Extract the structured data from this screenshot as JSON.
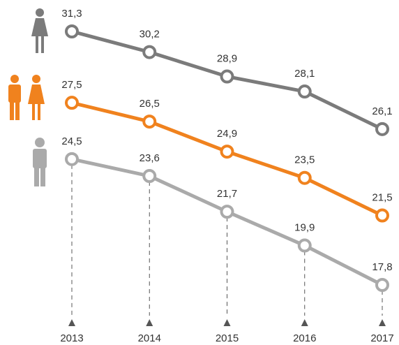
{
  "chart_data": {
    "type": "line",
    "categories": [
      "2013",
      "2014",
      "2015",
      "2016",
      "2017"
    ],
    "series": [
      {
        "color": "#7b7b7b",
        "values": [
          31.3,
          30.2,
          28.9,
          28.1,
          26.1
        ],
        "value_labels": [
          "31,3",
          "30,2",
          "28,9",
          "28,1",
          "26,1"
        ]
      },
      {
        "color": "#f0821e",
        "values": [
          27.5,
          26.5,
          24.9,
          23.5,
          21.5
        ],
        "value_labels": [
          "27,5",
          "26,5",
          "24,9",
          "23,5",
          "21,5"
        ]
      },
      {
        "color": "#aaaaaa",
        "values": [
          24.5,
          23.6,
          21.7,
          19.9,
          17.8
        ],
        "value_labels": [
          "24,5",
          "23,6",
          "21,7",
          "19,9",
          "17,8"
        ]
      }
    ]
  }
}
